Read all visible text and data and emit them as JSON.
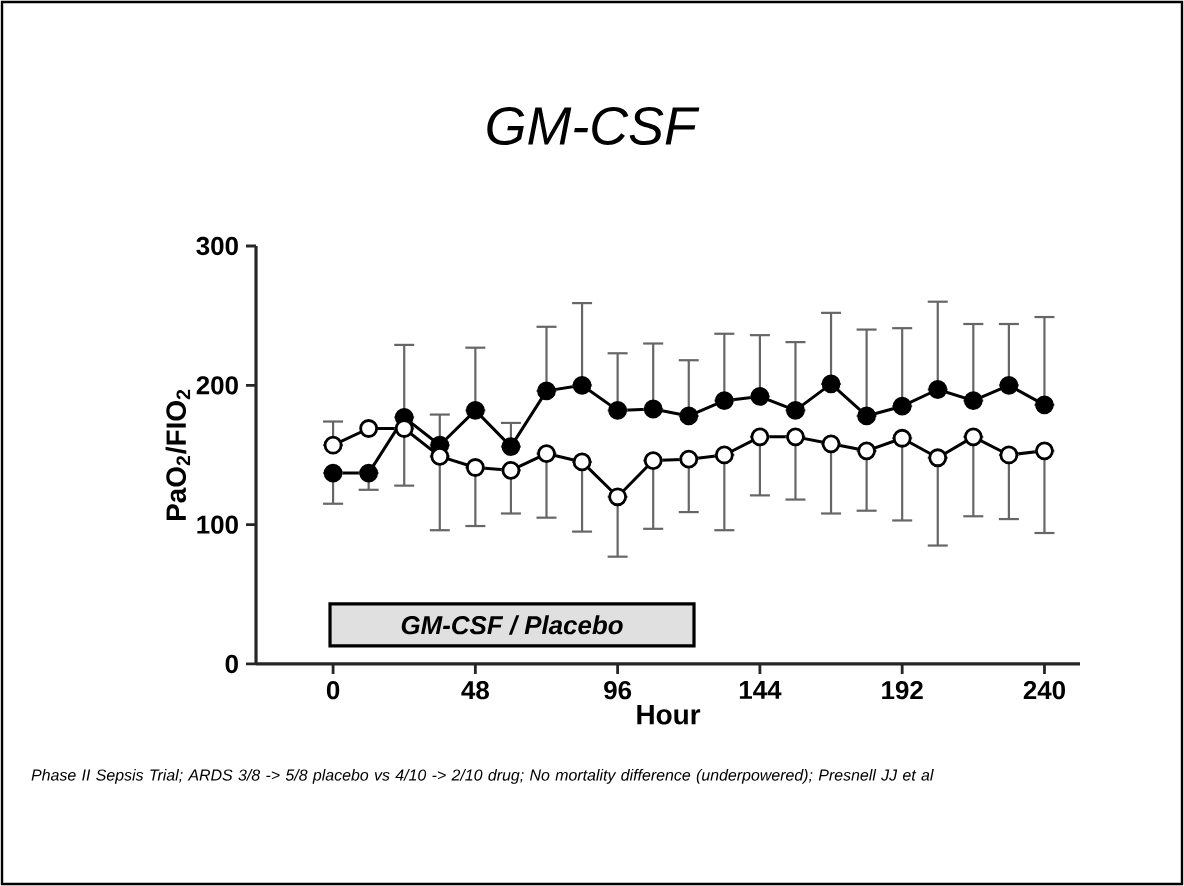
{
  "chart_data": {
    "type": "line",
    "title": "*GM-CSF*",
    "xlabel": "Hour",
    "ylabel": "PaO$_{2}$/FIO$_{2}$",
    "x": [
      0,
      12,
      24,
      36,
      48,
      60,
      72,
      84,
      96,
      108,
      120,
      132,
      144,
      156,
      168,
      180,
      192,
      204,
      216,
      228,
      240
    ],
    "series": [
      {
        "color": "#000000",
        "values": [
          137,
          137,
          177,
          157,
          182,
          156,
          196,
          200,
          182,
          183,
          178,
          189,
          192,
          182,
          201,
          178,
          185,
          197,
          189,
          200,
          186
        ],
        "errors": [
          [
            115,
            137
          ],
          [
            125,
            137
          ],
          [
            177,
            229
          ],
          [
            157,
            179
          ],
          [
            182,
            227
          ],
          [
            156,
            173
          ],
          [
            196,
            242
          ],
          [
            200,
            259
          ],
          [
            182,
            223
          ],
          [
            183,
            230
          ],
          [
            178,
            218
          ],
          [
            189,
            237
          ],
          [
            192,
            236
          ],
          [
            182,
            231
          ],
          [
            201,
            252
          ],
          [
            178,
            240
          ],
          [
            185,
            241
          ],
          [
            197,
            260
          ],
          [
            189,
            244
          ],
          [
            200,
            244
          ],
          [
            186,
            249
          ]
        ]
      },
      {
        "color": "#ffffff",
        "values": [
          157,
          169,
          169,
          149,
          141,
          139,
          151,
          145,
          120,
          146,
          147,
          150,
          163,
          163,
          158,
          153,
          162,
          148,
          163,
          150,
          153
        ],
        "errors": [
          [
            157,
            174
          ],
          null,
          [
            128,
            169
          ],
          [
            96,
            149
          ],
          [
            99,
            141
          ],
          [
            108,
            139
          ],
          [
            105,
            151
          ],
          [
            95,
            145
          ],
          [
            77,
            120
          ],
          [
            97,
            146
          ],
          [
            109,
            147
          ],
          [
            96,
            150
          ],
          [
            121,
            163
          ],
          [
            118,
            163
          ],
          [
            108,
            158
          ],
          [
            110,
            153
          ],
          [
            103,
            162
          ],
          [
            85,
            148
          ],
          [
            106,
            163
          ],
          [
            104,
            150
          ],
          [
            94,
            153
          ]
        ]
      }
    ],
    "xlim": [
      -26,
      252
    ],
    "ylim": [
      0,
      300
    ],
    "xticks": [
      0,
      48,
      96,
      144,
      192,
      240
    ],
    "yticks": [
      0,
      100,
      200,
      300
    ],
    "marker": "circle",
    "line_style": "solid",
    "grid": false,
    "annotations": [
      "**GM-CSF / Placebo**",
      "Phase II Sepsis Trial; ARDS 3/8 -> 5/8 placebo vs 4/10 -> 2/10 drug; No mortality difference (underpowered); Presnell JJ et al"
    ]
  }
}
